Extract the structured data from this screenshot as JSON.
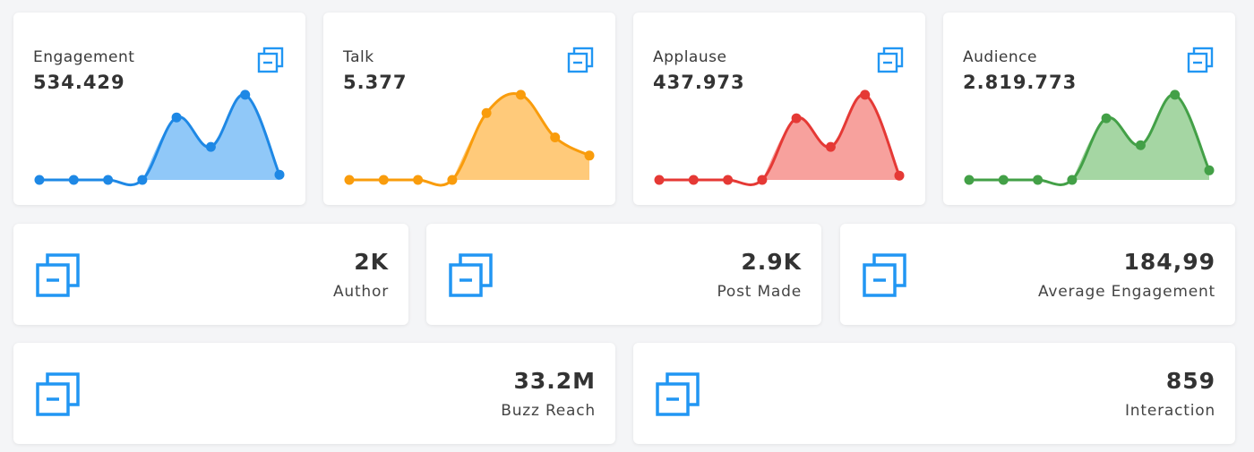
{
  "accent": "#2196f3",
  "sparkline_cards": [
    {
      "title": "Engagement",
      "value": "534.429",
      "icon": "copy-icon",
      "line_color": "#1e88e5",
      "fill_color": "#90c8f8",
      "chart_data": {
        "type": "area",
        "values": [
          0,
          0,
          0,
          0,
          72,
          38,
          98,
          6
        ]
      }
    },
    {
      "title": "Talk",
      "value": "5.377",
      "icon": "copy-icon",
      "line_color": "#f99c0c",
      "fill_color": "#ffca7a",
      "chart_data": {
        "type": "area",
        "values": [
          0,
          0,
          0,
          0,
          77,
          98,
          49,
          28
        ]
      }
    },
    {
      "title": "Applause",
      "value": "437.973",
      "icon": "copy-icon",
      "line_color": "#e53935",
      "fill_color": "#f7a19d",
      "chart_data": {
        "type": "area",
        "values": [
          0,
          0,
          0,
          0,
          71,
          38,
          98,
          5
        ]
      }
    },
    {
      "title": "Audience",
      "value": "2.819.773",
      "icon": "copy-icon",
      "line_color": "#43a047",
      "fill_color": "#a5d6a3",
      "chart_data": {
        "type": "area",
        "values": [
          0,
          0,
          0,
          0,
          71,
          40,
          98,
          11
        ]
      }
    }
  ],
  "stat_cards": [
    {
      "value": "2K",
      "label": "Author",
      "icon": "copy-icon"
    },
    {
      "value": "2.9K",
      "label": "Post Made",
      "icon": "copy-icon"
    },
    {
      "value": "184,99",
      "label": "Average Engagement",
      "icon": "copy-icon"
    },
    {
      "value": "33.2M",
      "label": "Buzz Reach",
      "icon": "copy-icon"
    },
    {
      "value": "859",
      "label": "Interaction",
      "icon": "copy-icon"
    }
  ]
}
